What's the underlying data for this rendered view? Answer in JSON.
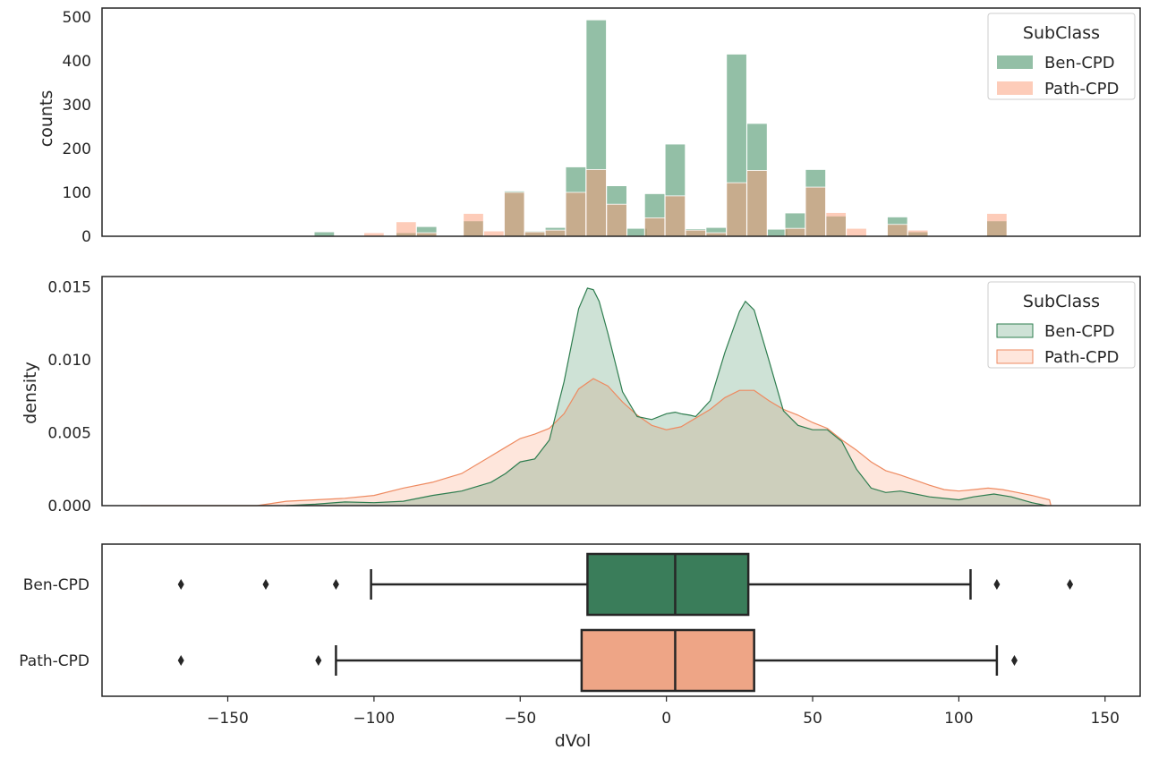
{
  "legend": {
    "title": "SubClass",
    "items": [
      "Ben-CPD",
      "Path-CPD"
    ]
  },
  "colors": {
    "ben_fill": "#3a8a5c",
    "path_fill": "#fc9a73",
    "ben_line": "#2e7d4f",
    "path_line": "#ee8a60",
    "ben_box": "#3a7d5a",
    "path_box": "#eea586",
    "axis": "#262626"
  },
  "x_axis": {
    "label": "dVol",
    "range": [
      -193,
      162
    ],
    "ticks": [
      -150,
      -100,
      -50,
      0,
      50,
      100,
      150
    ],
    "tick_labels": [
      "−150",
      "−100",
      "−50",
      "0",
      "50",
      "100",
      "150"
    ]
  },
  "chart_data": [
    {
      "type": "bar",
      "subtype": "overlaid-histogram",
      "ylabel": "counts",
      "ylim": [
        0,
        520
      ],
      "yticks": [
        0,
        100,
        200,
        300,
        400,
        500
      ],
      "bin_width": 6.9,
      "series": [
        {
          "name": "Ben-CPD",
          "bins": [
            {
              "x": -117,
              "count": 10
            },
            {
              "x": -82,
              "count": 22
            },
            {
              "x": -89,
              "count": 8
            },
            {
              "x": -66,
              "count": 35
            },
            {
              "x": -52,
              "count": 103
            },
            {
              "x": -45,
              "count": 12
            },
            {
              "x": -38,
              "count": 20
            },
            {
              "x": -31,
              "count": 158
            },
            {
              "x": -24,
              "count": 493
            },
            {
              "x": -17,
              "count": 115
            },
            {
              "x": -10,
              "count": 18
            },
            {
              "x": -4,
              "count": 97
            },
            {
              "x": 3,
              "count": 210
            },
            {
              "x": 10,
              "count": 17
            },
            {
              "x": 17,
              "count": 20
            },
            {
              "x": 24,
              "count": 415
            },
            {
              "x": 31,
              "count": 257
            },
            {
              "x": 38,
              "count": 16
            },
            {
              "x": 44,
              "count": 53
            },
            {
              "x": 51,
              "count": 152
            },
            {
              "x": 58,
              "count": 46
            },
            {
              "x": 79,
              "count": 44
            },
            {
              "x": 86,
              "count": 10
            },
            {
              "x": 113,
              "count": 35
            }
          ]
        },
        {
          "name": "Path-CPD",
          "bins": [
            {
              "x": -100,
              "count": 8
            },
            {
              "x": -89,
              "count": 33
            },
            {
              "x": -82,
              "count": 8
            },
            {
              "x": -66,
              "count": 52
            },
            {
              "x": -59,
              "count": 12
            },
            {
              "x": -52,
              "count": 100
            },
            {
              "x": -45,
              "count": 10
            },
            {
              "x": -38,
              "count": 14
            },
            {
              "x": -31,
              "count": 100
            },
            {
              "x": -24,
              "count": 152
            },
            {
              "x": -17,
              "count": 73
            },
            {
              "x": -4,
              "count": 42
            },
            {
              "x": 3,
              "count": 92
            },
            {
              "x": 10,
              "count": 14
            },
            {
              "x": 17,
              "count": 8
            },
            {
              "x": 24,
              "count": 122
            },
            {
              "x": 31,
              "count": 150
            },
            {
              "x": 44,
              "count": 18
            },
            {
              "x": 51,
              "count": 112
            },
            {
              "x": 58,
              "count": 54
            },
            {
              "x": 65,
              "count": 18
            },
            {
              "x": 79,
              "count": 27
            },
            {
              "x": 86,
              "count": 14
            },
            {
              "x": 113,
              "count": 52
            }
          ]
        }
      ]
    },
    {
      "type": "area",
      "subtype": "kde-density",
      "ylabel": "density",
      "ylim": [
        0,
        0.0157
      ],
      "yticks": [
        0,
        0.005,
        0.01,
        0.015
      ],
      "ytick_labels": [
        "0.000",
        "0.005",
        "0.010",
        "0.015"
      ],
      "series": [
        {
          "name": "Ben-CPD",
          "x": [
            -130,
            -120,
            -110,
            -100,
            -90,
            -80,
            -70,
            -60,
            -55,
            -50,
            -45,
            -40,
            -35,
            -30,
            -27,
            -25,
            -23,
            -20,
            -15,
            -10,
            -5,
            0,
            3,
            5,
            8,
            10,
            15,
            20,
            25,
            27,
            30,
            35,
            40,
            45,
            50,
            55,
            60,
            65,
            70,
            75,
            80,
            90,
            100,
            105,
            112,
            118,
            125,
            130
          ],
          "y": [
            0.0,
            0.0001,
            0.00025,
            0.0002,
            0.0003,
            0.0007,
            0.001,
            0.0016,
            0.0022,
            0.003,
            0.0032,
            0.0045,
            0.0085,
            0.0135,
            0.0149,
            0.0148,
            0.014,
            0.0118,
            0.0078,
            0.0061,
            0.0059,
            0.0063,
            0.0064,
            0.0063,
            0.0062,
            0.0061,
            0.0072,
            0.0105,
            0.0133,
            0.014,
            0.0134,
            0.01,
            0.0065,
            0.0055,
            0.0052,
            0.0052,
            0.0044,
            0.0025,
            0.0012,
            0.0009,
            0.001,
            0.0006,
            0.0004,
            0.0006,
            0.0008,
            0.0006,
            0.0002,
            0.0
          ]
        },
        {
          "name": "Path-CPD",
          "x": [
            -180,
            -140,
            -130,
            -120,
            -110,
            -100,
            -90,
            -80,
            -70,
            -60,
            -55,
            -50,
            -45,
            -40,
            -35,
            -30,
            -25,
            -20,
            -15,
            -10,
            -5,
            0,
            5,
            10,
            15,
            20,
            25,
            30,
            35,
            40,
            45,
            50,
            55,
            60,
            65,
            70,
            75,
            80,
            90,
            95,
            100,
            105,
            110,
            115,
            120,
            125,
            131,
            131.5
          ],
          "y": [
            0.0,
            0.0,
            0.0003,
            0.0004,
            0.0005,
            0.0007,
            0.0012,
            0.0016,
            0.0022,
            0.0034,
            0.004,
            0.0046,
            0.0049,
            0.0053,
            0.0063,
            0.008,
            0.0087,
            0.0082,
            0.0071,
            0.0062,
            0.0055,
            0.0052,
            0.0054,
            0.006,
            0.0066,
            0.0074,
            0.0079,
            0.0079,
            0.0072,
            0.0066,
            0.0062,
            0.0057,
            0.0053,
            0.0045,
            0.0038,
            0.003,
            0.0024,
            0.0021,
            0.0014,
            0.0011,
            0.001,
            0.0011,
            0.0012,
            0.0011,
            0.0009,
            0.0007,
            0.0004,
            0.0
          ]
        }
      ]
    },
    {
      "type": "box",
      "categories": [
        "Ben-CPD",
        "Path-CPD"
      ],
      "boxes": [
        {
          "name": "Ben-CPD",
          "q1": -27,
          "median": 3,
          "q3": 28,
          "whisker_low": -101,
          "whisker_high": 104,
          "outliers": [
            -166,
            -137,
            -113,
            113,
            138
          ]
        },
        {
          "name": "Path-CPD",
          "q1": -29,
          "median": 3,
          "q3": 30,
          "whisker_low": -113,
          "whisker_high": 113,
          "outliers": [
            -166,
            -119,
            119
          ]
        }
      ]
    }
  ]
}
